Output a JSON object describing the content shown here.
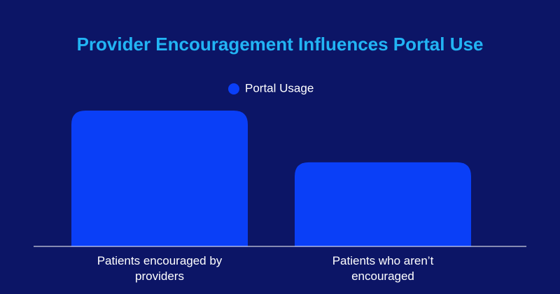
{
  "chart_data": {
    "type": "bar",
    "title": "Provider Encouragement Influences Portal Use",
    "categories": [
      "Patients encouraged by providers",
      "Patients who aren’t encouraged"
    ],
    "series": [
      {
        "name": "Portal Usage",
        "color": "#0a3ff7",
        "values": [
          63,
          39
        ]
      }
    ],
    "ylim": [
      0,
      70
    ],
    "legend": "top"
  }
}
